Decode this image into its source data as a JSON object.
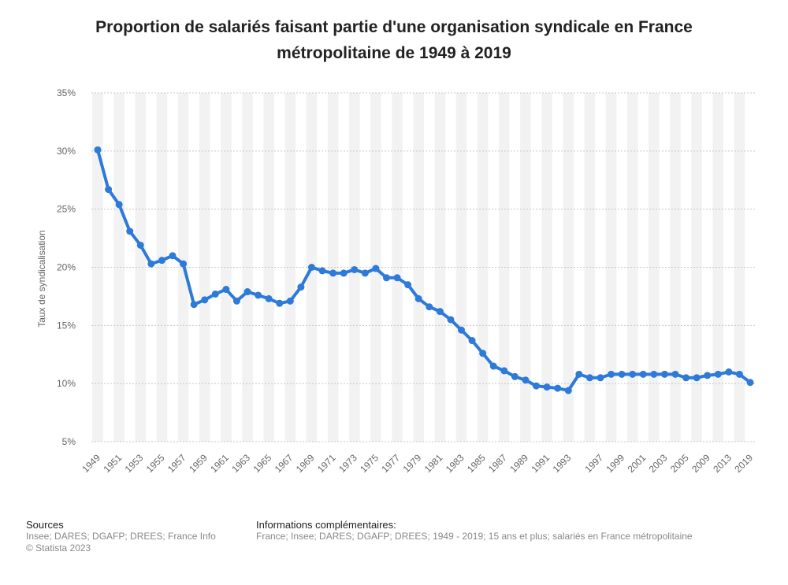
{
  "chart_data": {
    "type": "line",
    "title_lines": [
      "Proportion de salariés faisant partie d'une organisation syndicale en France",
      "métropolitaine de 1949 à 2019"
    ],
    "ylabel": "Taux de syndicalisation",
    "xlabel": "",
    "ylim": [
      5,
      35
    ],
    "y_ticks": [
      "5%",
      "10%",
      "15%",
      "20%",
      "25%",
      "30%",
      "35%"
    ],
    "y_tick_values": [
      5,
      10,
      15,
      20,
      25,
      30,
      35
    ],
    "x_tick_labels": [
      "1949",
      "1951",
      "1953",
      "1955",
      "1957",
      "1959",
      "1961",
      "1963",
      "1965",
      "1967",
      "1969",
      "1971",
      "1973",
      "1975",
      "1977",
      "1979",
      "1981",
      "1983",
      "1985",
      "1987",
      "1989",
      "1991",
      "1993",
      "1997",
      "1999",
      "2001",
      "2003",
      "2005",
      "2009",
      "2013",
      "2019"
    ],
    "categories": [
      "1949",
      "1950",
      "1951",
      "1952",
      "1953",
      "1954",
      "1955",
      "1956",
      "1957",
      "1958",
      "1959",
      "1960",
      "1961",
      "1962",
      "1963",
      "1964",
      "1965",
      "1966",
      "1967",
      "1968",
      "1969",
      "1970",
      "1971",
      "1972",
      "1973",
      "1974",
      "1975",
      "1976",
      "1977",
      "1978",
      "1979",
      "1980",
      "1981",
      "1982",
      "1983",
      "1984",
      "1985",
      "1986",
      "1987",
      "1988",
      "1989",
      "1990",
      "1991",
      "1992",
      "1993",
      "1995",
      "1996",
      "1997",
      "1998",
      "1999",
      "2000",
      "2001",
      "2002",
      "2003",
      "2004",
      "2005",
      "2006",
      "2009",
      "2010",
      "2013",
      "2016",
      "2019"
    ],
    "series": [
      {
        "values": [
          30.1,
          26.7,
          25.4,
          23.1,
          21.9,
          20.3,
          20.6,
          21.0,
          20.3,
          16.8,
          17.2,
          17.7,
          18.1,
          17.1,
          17.9,
          17.6,
          17.3,
          16.9,
          17.1,
          18.3,
          20.0,
          19.7,
          19.5,
          19.5,
          19.8,
          19.5,
          19.9,
          19.1,
          19.1,
          18.5,
          17.3,
          16.6,
          16.2,
          15.5,
          14.6,
          13.7,
          12.6,
          11.5,
          11.1,
          10.6,
          10.3,
          9.8,
          9.7,
          9.6,
          9.4,
          10.8,
          10.5,
          10.5,
          10.8,
          10.8,
          10.8,
          10.8,
          10.8,
          10.8,
          10.8,
          10.5,
          10.5,
          10.7,
          10.8,
          11.0,
          10.8,
          10.1
        ]
      }
    ],
    "colors": {
      "line": "#2e7ad9",
      "grid": "#c8c8c8",
      "band": "#f2f2f2",
      "tick": "#666666"
    },
    "grid": true
  },
  "footer": {
    "sources_head": "Sources",
    "sources_lines": [
      "Insee; DARES; DGAFP; DREES; France Info",
      "© Statista 2023"
    ],
    "info_head": "Informations complémentaires:",
    "info_line": "France; Insee; DARES; DGAFP; DREES; 1949 - 2019; 15 ans et plus; salariés en France métropolitaine"
  }
}
